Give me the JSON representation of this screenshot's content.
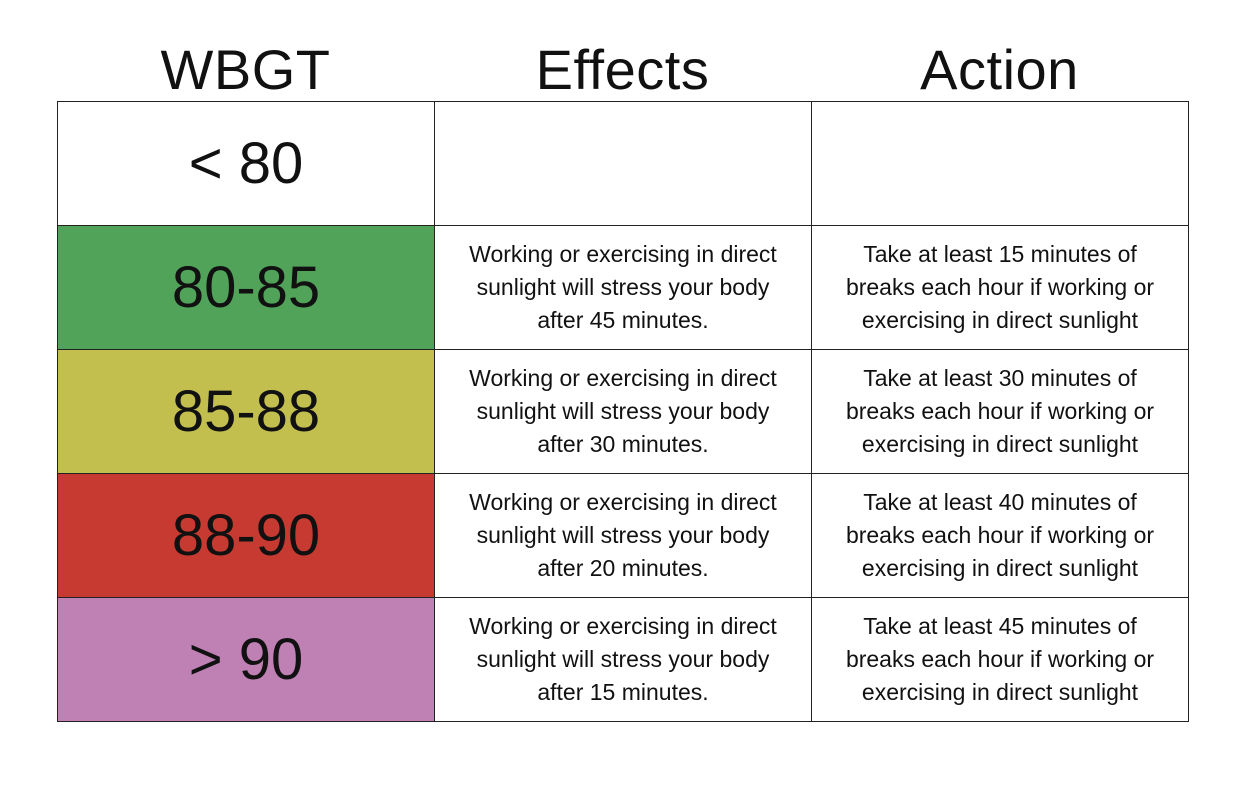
{
  "headers": {
    "wbgt": "WBGT",
    "effects": "Effects",
    "action": "Action"
  },
  "rows": [
    {
      "wbgt": "< 80",
      "color": "#ffffff",
      "effects": [
        "",
        "",
        ""
      ],
      "action": [
        "",
        "",
        ""
      ]
    },
    {
      "wbgt": "80-85",
      "color": "#52a35a",
      "effects": [
        "Working or exercising in direct",
        "sunlight will stress your body",
        "after 45 minutes."
      ],
      "action": [
        "Take at least 15 minutes of",
        "breaks each hour if working or",
        "exercising in direct sunlight"
      ]
    },
    {
      "wbgt": "85-88",
      "color": "#c2bf4f",
      "effects": [
        "Working or exercising in direct",
        "sunlight will stress your body",
        "after 30 minutes."
      ],
      "action": [
        "Take at least 30 minutes of",
        "breaks each hour if working or",
        "exercising in direct sunlight"
      ]
    },
    {
      "wbgt": "88-90",
      "color": "#c63a31",
      "effects": [
        "Working or exercising in direct",
        "sunlight will stress your body",
        "after 20 minutes."
      ],
      "action": [
        "Take at least 40 minutes of",
        "breaks each hour if working or",
        "exercising in direct sunlight"
      ]
    },
    {
      "wbgt": "> 90",
      "color": "#bf80b4",
      "effects": [
        "Working or exercising in direct",
        "sunlight will stress your body",
        "after 15 minutes."
      ],
      "action": [
        "Take at least 45 minutes of",
        "breaks each hour if working or",
        "exercising in direct sunlight"
      ]
    }
  ]
}
